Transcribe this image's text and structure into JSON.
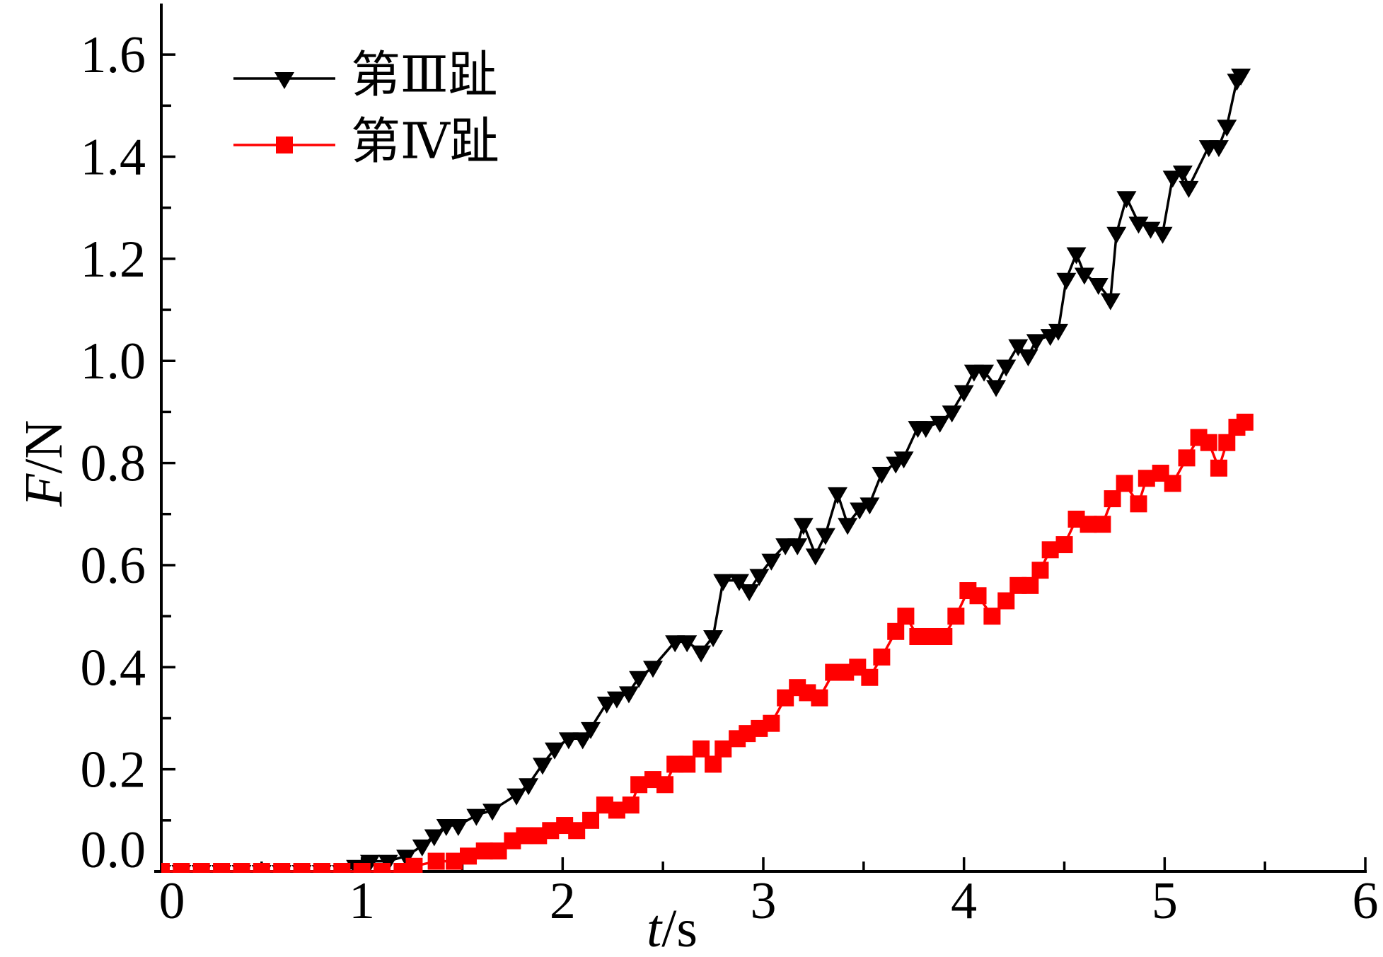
{
  "chart_data": {
    "type": "line",
    "xlabel": "t/s",
    "ylabel": "F/N",
    "xlim": [
      0,
      6
    ],
    "ylim": [
      0,
      1.7
    ],
    "xticks": [
      0,
      1,
      2,
      3,
      4,
      5,
      6
    ],
    "xtick_labels": [
      "0",
      "1",
      "2",
      "3",
      "4",
      "5",
      "6"
    ],
    "x_minor_step": 0.5,
    "yticks": [
      0,
      0.2,
      0.4,
      0.6,
      0.8,
      1.0,
      1.2,
      1.4,
      1.6
    ],
    "ytick_labels": [
      "0.0",
      "0.2",
      "0.4",
      "0.6",
      "0.8",
      "1.0",
      "1.2",
      "1.4",
      "1.6"
    ],
    "y_minor_step": 0.1,
    "grid": false,
    "legend": "top-left",
    "series": [
      {
        "name": "第Ⅲ趾",
        "color": "#000000",
        "marker": "triangle-down",
        "x": [
          0,
          0.1,
          0.2,
          0.3,
          0.4,
          0.5,
          0.6,
          0.7,
          0.8,
          0.9,
          0.97,
          1.04,
          1.13,
          1.22,
          1.3,
          1.36,
          1.42,
          1.48,
          1.57,
          1.65,
          1.77,
          1.83,
          1.9,
          1.96,
          2.03,
          2.1,
          2.14,
          2.22,
          2.27,
          2.33,
          2.38,
          2.45,
          2.56,
          2.62,
          2.69,
          2.75,
          2.8,
          2.88,
          2.93,
          2.98,
          3.04,
          3.11,
          3.17,
          3.2,
          3.26,
          3.31,
          3.37,
          3.42,
          3.48,
          3.53,
          3.59,
          3.66,
          3.7,
          3.77,
          3.81,
          3.88,
          3.94,
          4.0,
          4.05,
          4.1,
          4.16,
          4.21,
          4.27,
          4.32,
          4.36,
          4.43,
          4.47,
          4.51,
          4.56,
          4.6,
          4.67,
          4.73,
          4.76,
          4.81,
          4.87,
          4.93,
          4.99,
          5.04,
          5.09,
          5.12,
          5.22,
          5.27,
          5.31,
          5.36,
          5.38
        ],
        "y": [
          0,
          0,
          0,
          0,
          0,
          0,
          0,
          0,
          0,
          0,
          0.01,
          0.02,
          0.02,
          0.03,
          0.05,
          0.07,
          0.09,
          0.09,
          0.11,
          0.12,
          0.15,
          0.17,
          0.21,
          0.24,
          0.26,
          0.26,
          0.28,
          0.33,
          0.34,
          0.35,
          0.38,
          0.4,
          0.45,
          0.45,
          0.43,
          0.46,
          0.57,
          0.57,
          0.55,
          0.58,
          0.61,
          0.64,
          0.64,
          0.68,
          0.62,
          0.66,
          0.74,
          0.68,
          0.71,
          0.72,
          0.78,
          0.8,
          0.81,
          0.87,
          0.87,
          0.88,
          0.9,
          0.94,
          0.98,
          0.98,
          0.95,
          0.99,
          1.03,
          1.01,
          1.04,
          1.05,
          1.06,
          1.16,
          1.21,
          1.17,
          1.15,
          1.12,
          1.25,
          1.32,
          1.27,
          1.26,
          1.25,
          1.36,
          1.37,
          1.34,
          1.42,
          1.42,
          1.46,
          1.55,
          1.56
        ]
      },
      {
        "name": "第Ⅳ趾",
        "color": "#ff0000",
        "marker": "square",
        "x": [
          0,
          0.1,
          0.2,
          0.3,
          0.4,
          0.5,
          0.6,
          0.7,
          0.8,
          0.9,
          1.0,
          1.1,
          1.2,
          1.26,
          1.37,
          1.46,
          1.53,
          1.61,
          1.68,
          1.75,
          1.81,
          1.88,
          1.94,
          2.01,
          2.07,
          2.14,
          2.21,
          2.27,
          2.34,
          2.38,
          2.45,
          2.51,
          2.56,
          2.62,
          2.69,
          2.75,
          2.8,
          2.87,
          2.92,
          2.98,
          3.04,
          3.11,
          3.17,
          3.22,
          3.28,
          3.35,
          3.41,
          3.47,
          3.53,
          3.59,
          3.66,
          3.71,
          3.77,
          3.83,
          3.9,
          3.96,
          4.02,
          4.07,
          4.14,
          4.21,
          4.27,
          4.33,
          4.38,
          4.43,
          4.5,
          4.56,
          4.62,
          4.69,
          4.74,
          4.8,
          4.87,
          4.91,
          4.98,
          5.04,
          5.11,
          5.17,
          5.22,
          5.27,
          5.31,
          5.36,
          5.4
        ],
        "y": [
          0,
          0,
          0,
          0,
          0,
          0,
          0,
          0,
          0,
          0,
          0,
          0,
          0,
          0.01,
          0.02,
          0.02,
          0.03,
          0.04,
          0.04,
          0.06,
          0.07,
          0.07,
          0.08,
          0.09,
          0.08,
          0.1,
          0.13,
          0.12,
          0.13,
          0.17,
          0.18,
          0.17,
          0.21,
          0.21,
          0.24,
          0.21,
          0.24,
          0.26,
          0.27,
          0.28,
          0.29,
          0.34,
          0.36,
          0.35,
          0.34,
          0.39,
          0.39,
          0.4,
          0.38,
          0.42,
          0.47,
          0.5,
          0.46,
          0.46,
          0.46,
          0.5,
          0.55,
          0.54,
          0.5,
          0.53,
          0.56,
          0.56,
          0.59,
          0.63,
          0.64,
          0.69,
          0.68,
          0.68,
          0.73,
          0.76,
          0.72,
          0.77,
          0.78,
          0.76,
          0.81,
          0.85,
          0.84,
          0.79,
          0.84,
          0.87,
          0.88
        ]
      }
    ]
  }
}
